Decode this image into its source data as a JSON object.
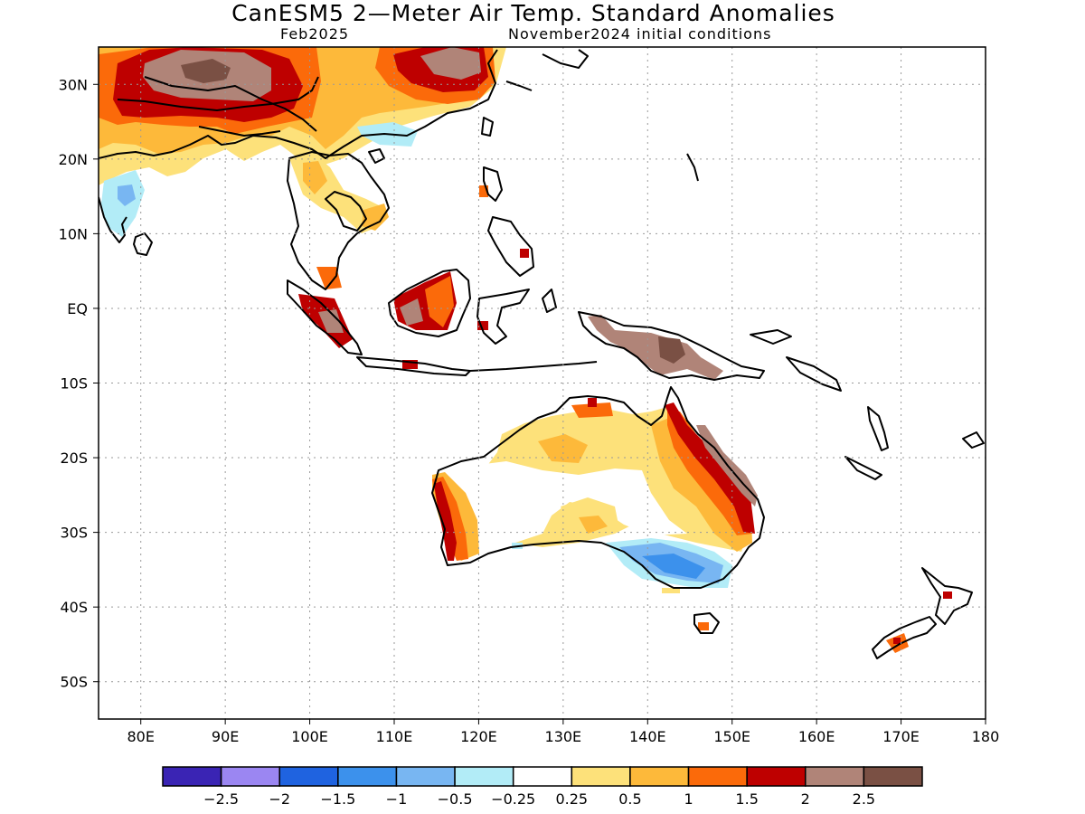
{
  "title": "CanESM5 2—Meter Air Temp. Standard Anomalies",
  "subtitle_left": "Feb2025",
  "subtitle_right": "November2024 initial conditions",
  "map": {
    "lon_range": [
      75,
      180
    ],
    "lat_range": [
      -55,
      35
    ],
    "x_ticks": [
      {
        "lon": 80,
        "label": "80E"
      },
      {
        "lon": 90,
        "label": "90E"
      },
      {
        "lon": 100,
        "label": "100E"
      },
      {
        "lon": 110,
        "label": "110E"
      },
      {
        "lon": 120,
        "label": "120E"
      },
      {
        "lon": 130,
        "label": "130E"
      },
      {
        "lon": 140,
        "label": "140E"
      },
      {
        "lon": 150,
        "label": "150E"
      },
      {
        "lon": 160,
        "label": "160E"
      },
      {
        "lon": 170,
        "label": "170E"
      },
      {
        "lon": 180,
        "label": "180"
      }
    ],
    "y_ticks": [
      {
        "lat": 30,
        "label": "30N"
      },
      {
        "lat": 20,
        "label": "20N"
      },
      {
        "lat": 10,
        "label": "10N"
      },
      {
        "lat": 0,
        "label": "EQ"
      },
      {
        "lat": -10,
        "label": "10S"
      },
      {
        "lat": -20,
        "label": "20S"
      },
      {
        "lat": -30,
        "label": "30S"
      },
      {
        "lat": -40,
        "label": "40S"
      },
      {
        "lat": -50,
        "label": "50S"
      }
    ],
    "grid": "dotted"
  },
  "colorbar": {
    "colors": [
      "#3a24b4",
      "#9b86f2",
      "#1f63e0",
      "#3c91ec",
      "#78b6f2",
      "#b2ecf7",
      "#ffffff",
      "#fde17a",
      "#fdb93a",
      "#fb6a0a",
      "#be0000",
      "#b08478",
      "#7a5044"
    ],
    "labels": [
      "−2.5",
      "−2",
      "−1.5",
      "−1",
      "−0.5",
      "−0.25",
      "0.25",
      "0.5",
      "1",
      "1.5",
      "2",
      "2.5"
    ]
  }
}
